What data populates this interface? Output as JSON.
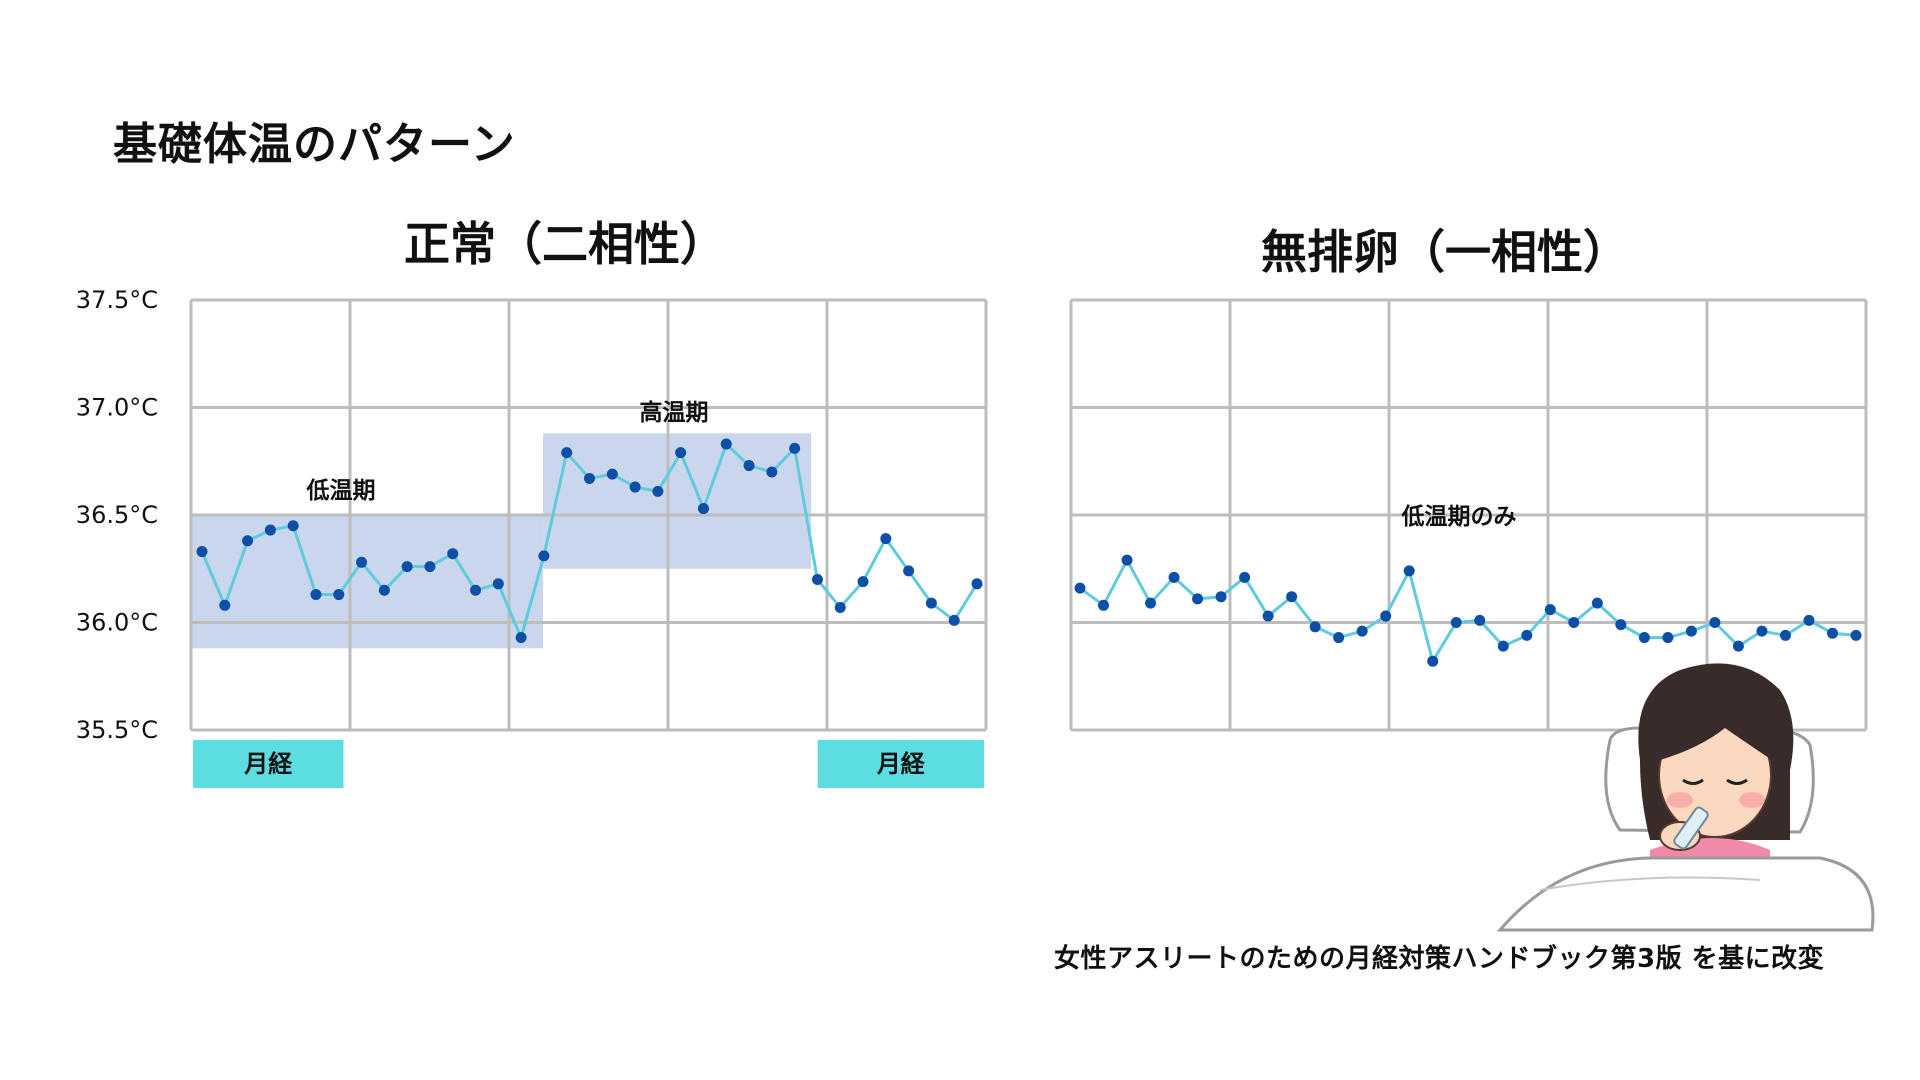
{
  "page": {
    "title": "基礎体温のパターン",
    "credit": "女性アスリートのための月経対策ハンドブック第3版 を基に改変"
  },
  "colors": {
    "line": "#5fcbde",
    "marker": "#0d4ea6",
    "phase_band": "#a9bde0",
    "menses_band": "#5cdde2",
    "grid": "#bdbdbd"
  },
  "illustration": {
    "name": "woman-taking-temperature-in-bed",
    "note": ""
  },
  "chart_data": [
    {
      "type": "line",
      "title": "正常（二相性）",
      "ylim": [
        35.5,
        37.5
      ],
      "yticks": [
        "37.5°C",
        "37.0°C",
        "36.5°C",
        "36.0°C",
        "35.5°C"
      ],
      "ytick_values": [
        37.5,
        37.0,
        36.5,
        36.0,
        35.5
      ],
      "xlim": [
        0,
        35
      ],
      "grid": true,
      "y": [
        36.33,
        36.08,
        36.38,
        36.43,
        36.45,
        36.13,
        36.13,
        36.28,
        36.15,
        36.26,
        36.26,
        36.32,
        36.15,
        36.18,
        35.93,
        36.31,
        36.79,
        36.67,
        36.69,
        36.63,
        36.61,
        36.79,
        36.53,
        36.83,
        36.73,
        36.7,
        36.81,
        36.2,
        36.07,
        36.19,
        36.39,
        36.24,
        36.09,
        36.01,
        36.18
      ],
      "phases": [
        {
          "label": "低温期",
          "x": [
            0,
            15.5
          ],
          "y": [
            35.88,
            36.5
          ]
        },
        {
          "label": "高温期",
          "x": [
            15.5,
            27.3
          ],
          "y": [
            36.25,
            36.88
          ]
        }
      ],
      "menses": [
        {
          "label": "月経",
          "x": [
            0,
            6.8
          ]
        },
        {
          "label": "月経",
          "x": [
            27.5,
            35
          ]
        }
      ]
    },
    {
      "type": "line",
      "title": "無排卵（一相性）",
      "ylim": [
        35.5,
        37.5
      ],
      "xlim": [
        0,
        35
      ],
      "grid": true,
      "y": [
        36.16,
        36.08,
        36.29,
        36.09,
        36.21,
        36.11,
        36.12,
        36.21,
        36.03,
        36.12,
        35.98,
        35.93,
        35.96,
        36.03,
        36.24,
        35.82,
        36.0,
        36.01,
        35.89,
        35.94,
        36.06,
        36.0,
        36.09,
        35.99,
        35.93,
        35.93,
        35.96,
        36.0,
        35.89,
        35.96,
        35.94,
        36.01,
        35.95,
        35.94
      ],
      "phases": [
        {
          "label": "低温期のみ"
        }
      ]
    }
  ]
}
